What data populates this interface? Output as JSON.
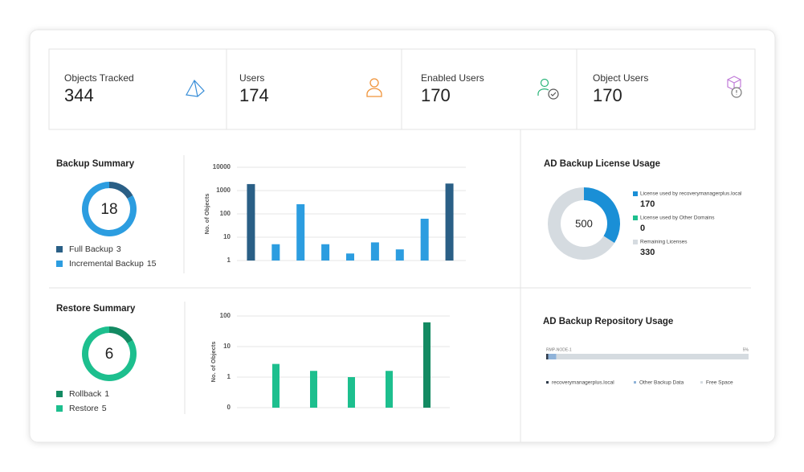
{
  "stats": [
    {
      "label": "Objects Tracked",
      "value": 344
    },
    {
      "label": "Users",
      "value": 174
    },
    {
      "label": "Enabled Users",
      "value": 170
    },
    {
      "label": "Object Users",
      "value": 170
    }
  ],
  "backup_summary": {
    "title": "Backup Summary",
    "total": 18,
    "legend": [
      {
        "name": "Full Backup",
        "value": 3,
        "color": "#2a5f86"
      },
      {
        "name": "Incremental Backup",
        "value": 15,
        "color": "#2c9de0"
      }
    ],
    "chart": {
      "type": "bar",
      "y_label": "No. of Objects",
      "scale": "log",
      "ylim": [
        1,
        10000
      ],
      "yticks": [
        1,
        10,
        100,
        1000,
        10000
      ],
      "values": [
        1900,
        5,
        260,
        5,
        2,
        6,
        3,
        62,
        2000
      ],
      "colors": [
        "#2a5f86",
        "#2c9de0",
        "#2c9de0",
        "#2c9de0",
        "#2c9de0",
        "#2c9de0",
        "#2c9de0",
        "#2c9de0",
        "#2a5f86"
      ]
    }
  },
  "restore_summary": {
    "title": "Restore Summary",
    "total": 6,
    "legend": [
      {
        "name": "Rollback",
        "value": 1,
        "color": "#138a62"
      },
      {
        "name": "Restore",
        "value": 5,
        "color": "#1dbf8e"
      }
    ],
    "chart": {
      "type": "bar",
      "y_label": "No. of Objects",
      "scale": "symlog",
      "ylim": [
        0,
        100
      ],
      "yticks": [
        0,
        1,
        10,
        100
      ],
      "values": [
        2.7,
        1.6,
        1,
        1.6,
        62
      ],
      "colors": [
        "#1dbf8e",
        "#1dbf8e",
        "#1dbf8e",
        "#1dbf8e",
        "#138a62"
      ]
    }
  },
  "license_usage": {
    "title": "AD Backup License Usage",
    "total": 500,
    "legend": [
      {
        "name": "License used by recoverymanagerplus.local",
        "value": 170,
        "color": "#1a8fd6"
      },
      {
        "name": "License used by Other Domains",
        "value": 0,
        "color": "#1dbf8e"
      },
      {
        "name": "Remaining Licenses",
        "value": 330,
        "color": "#d5dbe0"
      }
    ]
  },
  "repository_usage": {
    "title": "AD Backup Repository Usage",
    "node": "RMP-NODE-1",
    "used": 5,
    "used_label": "5%",
    "legend": [
      {
        "name": "recoverymanagerplus.local",
        "value": 1,
        "color": "#2f3b4a"
      },
      {
        "name": "Other Backup Data",
        "value": 4,
        "color": "#8fb3d9"
      },
      {
        "name": "Free Space",
        "value": 95,
        "color": "#d5dbe0"
      }
    ]
  }
}
